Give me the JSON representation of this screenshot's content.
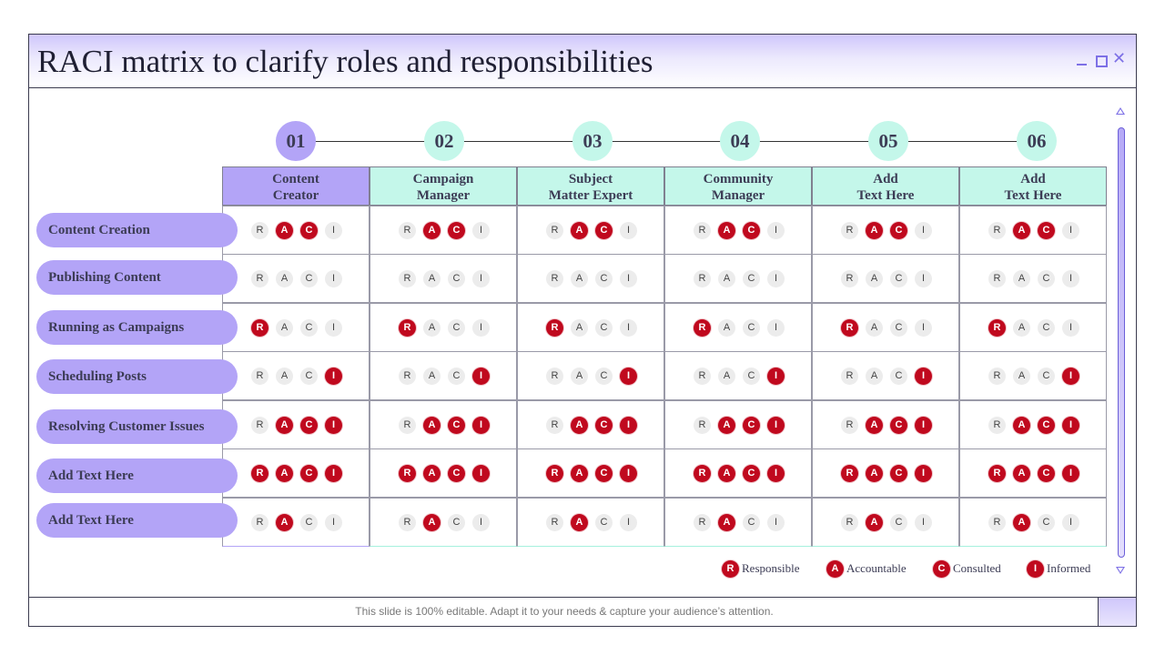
{
  "title": "RACI matrix to clarify roles and responsibilities",
  "footer": "This slide is 100% editable. Adapt it to your needs & capture your audience’s attention.",
  "colors": {
    "accent_purple": "#b3a4f7",
    "accent_mint": "#c4f7ea",
    "active_badge": "#c0091e"
  },
  "letters": [
    "R",
    "A",
    "C",
    "I"
  ],
  "columns": [
    {
      "num": "01",
      "line1": "Content",
      "line2": "Creator"
    },
    {
      "num": "02",
      "line1": "Campaign",
      "line2": "Manager"
    },
    {
      "num": "03",
      "line1": "Subject",
      "line2": "Matter Expert"
    },
    {
      "num": "04",
      "line1": "Community",
      "line2": "Manager"
    },
    {
      "num": "05",
      "line1": "Add",
      "line2": "Text Here"
    },
    {
      "num": "06",
      "line1": "Add",
      "line2": "Text Here"
    }
  ],
  "rows": [
    {
      "label": "Content Creation",
      "active": [
        "A",
        "C"
      ]
    },
    {
      "label": "Publishing Content",
      "active": []
    },
    {
      "label": "Running as Campaigns",
      "active": [
        "R"
      ]
    },
    {
      "label": "Scheduling Posts",
      "active": [
        "I"
      ]
    },
    {
      "label": "Resolving Customer Issues",
      "active": [
        "A",
        "C",
        "I"
      ]
    },
    {
      "label": "Add Text Here",
      "active": [
        "R",
        "A",
        "C",
        "I"
      ]
    },
    {
      "label": "Add Text Here",
      "active": [
        "A"
      ]
    }
  ],
  "legend": [
    {
      "letter": "R",
      "label": "Responsible"
    },
    {
      "letter": "A",
      "label": "Accountable"
    },
    {
      "letter": "C",
      "label": "Consulted"
    },
    {
      "letter": "I",
      "label": "Informed"
    }
  ],
  "icons": {
    "minimize": "minimize-icon",
    "maximize": "maximize-icon",
    "close": "close-icon"
  }
}
